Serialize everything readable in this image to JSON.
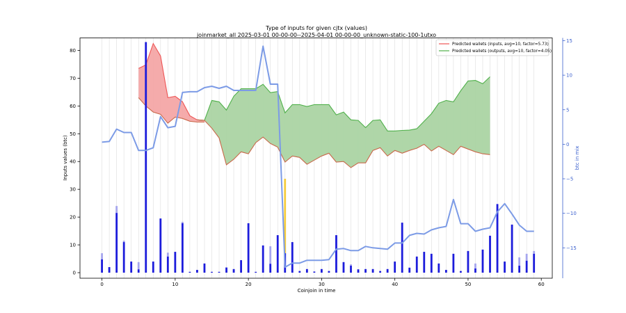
{
  "chart_data": {
    "type": "line",
    "title": "Type of inputs for given cjtx (values)",
    "subtitle": "joinmarket_all 2025-03-01 00-00-00--2025-04-01 00-00-00_unknown-static-100-1utxo",
    "xlabel": "Coinjoin in time",
    "ylabel": "Inputs values (btc)",
    "y2label": "btc in mix",
    "xlim": [
      -3,
      61.5
    ],
    "ylim": [
      -2,
      84.5
    ],
    "y2lim": [
      -19.4,
      15.4
    ],
    "xticks": [
      0,
      10,
      20,
      30,
      40,
      50,
      60
    ],
    "yticks": [
      0,
      10,
      20,
      30,
      40,
      50,
      60,
      70,
      80
    ],
    "y2ticks": [
      -15,
      -10,
      -5,
      0,
      5,
      10,
      15
    ],
    "colors": {
      "inputs_fill": "#f4a6a6",
      "inputs_line": "#ee5555",
      "outputs_fill": "#abd4a3",
      "outputs_line": "#4fb04a",
      "bound_line": "#c9684a",
      "btc_in_mix": "#7c9be6",
      "bars": "#1c1cdb",
      "bars_light": "#a6a6ee",
      "highlight_bar": "#f5cc3c",
      "y2_axis": "#3a5fcd"
    },
    "legend": {
      "placement": "top-right",
      "entries": [
        "Predicted wallets (inputs, avg=10, factor=5.73)",
        "Predicted wallets (outputs, avg=10, factor=4.05)"
      ]
    },
    "series": [
      {
        "name": "Predicted wallets (inputs, avg=10, factor=5.73)",
        "kind": "band",
        "x": [
          5,
          6,
          7,
          8,
          9,
          10,
          11,
          12,
          13,
          14
        ],
        "upper": [
          73.5,
          74.8,
          82.5,
          78.0,
          63.0,
          63.5,
          61.5,
          56.5,
          55.0,
          54.8
        ],
        "lower": [
          63.0,
          60.0,
          57.8,
          57.0,
          53.8,
          56.0,
          55.5,
          54.5,
          54.2,
          54.2
        ]
      },
      {
        "name": "Predicted wallets (outputs, avg=10, factor=4.05)",
        "kind": "band",
        "x": [
          13,
          14,
          15,
          16,
          17,
          18,
          19,
          20,
          21,
          22,
          23,
          24,
          25,
          26,
          27,
          28,
          29,
          30,
          31,
          32,
          33,
          34,
          35,
          36,
          37,
          38,
          39,
          40,
          41,
          42,
          43,
          44,
          45,
          46,
          47,
          48,
          49,
          50,
          51,
          52,
          53
        ],
        "upper": [
          55.0,
          54.8,
          62.0,
          61.5,
          58.5,
          63.5,
          66.2,
          66.2,
          66.2,
          67.8,
          64.8,
          65.2,
          57.5,
          60.5,
          60.5,
          59.8,
          60.5,
          60.5,
          60.5,
          56.8,
          57.8,
          55.0,
          54.8,
          52.2,
          54.8,
          55.0,
          51.0,
          51.0,
          51.2,
          51.3,
          51.8,
          54.5,
          57.2,
          61.0,
          62.0,
          61.5,
          65.5,
          69.0,
          69.2,
          68.0,
          70.5
        ],
        "lower": [
          55.0,
          54.8,
          52.0,
          48.5,
          38.8,
          40.8,
          43.5,
          42.8,
          46.8,
          48.8,
          46.5,
          45.2,
          39.8,
          42.0,
          41.5,
          39.0,
          40.5,
          42.0,
          43.0,
          39.8,
          40.0,
          37.8,
          39.5,
          39.5,
          44.0,
          45.0,
          42.0,
          44.0,
          43.0,
          44.0,
          44.8,
          46.2,
          43.8,
          45.5,
          44.0,
          42.5,
          45.5,
          44.5,
          43.5,
          42.8,
          42.5
        ]
      },
      {
        "name": "btc in mix",
        "kind": "line",
        "axis": "y2",
        "x": [
          0,
          1,
          2,
          3,
          4,
          5,
          6,
          7,
          8,
          9,
          10,
          11,
          12,
          13,
          14,
          15,
          16,
          17,
          18,
          19,
          20,
          21,
          22,
          23,
          24,
          25,
          26,
          27,
          28,
          29,
          30,
          31,
          32,
          33,
          34,
          35,
          36,
          37,
          38,
          39,
          40,
          41,
          42,
          43,
          44,
          45,
          46,
          47,
          48,
          49,
          50,
          51,
          52,
          53,
          54,
          55,
          56,
          57,
          58,
          59
        ],
        "values": [
          0.3,
          0.4,
          2.2,
          1.7,
          1.7,
          -0.9,
          -0.9,
          -0.5,
          4.0,
          2.4,
          2.6,
          7.5,
          7.6,
          7.6,
          8.2,
          8.4,
          8.1,
          8.4,
          7.8,
          7.8,
          7.8,
          7.8,
          14.2,
          8.7,
          8.7,
          -17.8,
          -17.2,
          -17.2,
          -16.8,
          -16.8,
          -16.8,
          -16.7,
          -15.2,
          -15.1,
          -15.4,
          -15.4,
          -14.8,
          -15.0,
          -15.1,
          -15.2,
          -14.3,
          -14.3,
          -13.2,
          -12.9,
          -13.0,
          -12.4,
          -12.1,
          -11.9,
          -8.0,
          -11.5,
          -11.5,
          -12.6,
          -12.3,
          -12.1,
          -9.8,
          -8.6,
          -10.1,
          -11.7,
          -12.6,
          -12.6
        ]
      },
      {
        "name": "Input values (bars)",
        "kind": "bar",
        "x": [
          0,
          1,
          2,
          3,
          4,
          5,
          6,
          7,
          8,
          9,
          10,
          11,
          12,
          13,
          14,
          15,
          16,
          17,
          18,
          19,
          20,
          21,
          22,
          23,
          24,
          25,
          26,
          27,
          28,
          29,
          30,
          31,
          32,
          33,
          34,
          35,
          36,
          37,
          38,
          39,
          40,
          41,
          42,
          43,
          44,
          45,
          46,
          47,
          48,
          49,
          50,
          51,
          52,
          53,
          54,
          55,
          56,
          57,
          58,
          59
        ],
        "values": [
          4.8,
          2.0,
          21.5,
          11.0,
          4.0,
          1.2,
          83.0,
          4.0,
          19.5,
          5.8,
          7.5,
          17.8,
          0.3,
          1.0,
          3.3,
          0.3,
          0.3,
          1.8,
          1.3,
          4.5,
          17.8,
          0.3,
          9.8,
          3.2,
          13.5,
          7.0,
          11.0,
          0.6,
          1.3,
          0.4,
          1.3,
          0.6,
          13.5,
          3.8,
          2.5,
          1.2,
          1.3,
          1.3,
          0.6,
          1.3,
          4.0,
          18.0,
          1.8,
          5.8,
          7.5,
          6.8,
          3.3,
          1.0,
          6.8,
          0.6,
          7.8,
          1.5,
          8.3,
          13.3,
          24.7,
          4.0,
          17.3,
          2.5,
          4.3,
          6.8
        ],
        "tops": [
          7.0,
          2.0,
          24.0,
          11.5,
          4.0,
          3.8,
          83.0,
          4.0,
          19.5,
          7.2,
          7.5,
          18.3,
          0.3,
          1.0,
          3.3,
          0.3,
          0.3,
          2.0,
          1.3,
          4.5,
          17.8,
          0.3,
          9.8,
          9.5,
          13.5,
          33.8,
          11.0,
          0.6,
          1.3,
          0.4,
          1.3,
          0.6,
          13.5,
          3.8,
          3.0,
          1.2,
          1.3,
          1.3,
          0.6,
          1.3,
          4.0,
          18.0,
          1.8,
          5.8,
          7.5,
          6.8,
          3.3,
          1.0,
          6.8,
          0.6,
          7.8,
          3.3,
          8.3,
          13.3,
          24.7,
          4.0,
          17.3,
          5.5,
          6.8,
          7.8
        ],
        "highlight_index": 25
      }
    ]
  }
}
